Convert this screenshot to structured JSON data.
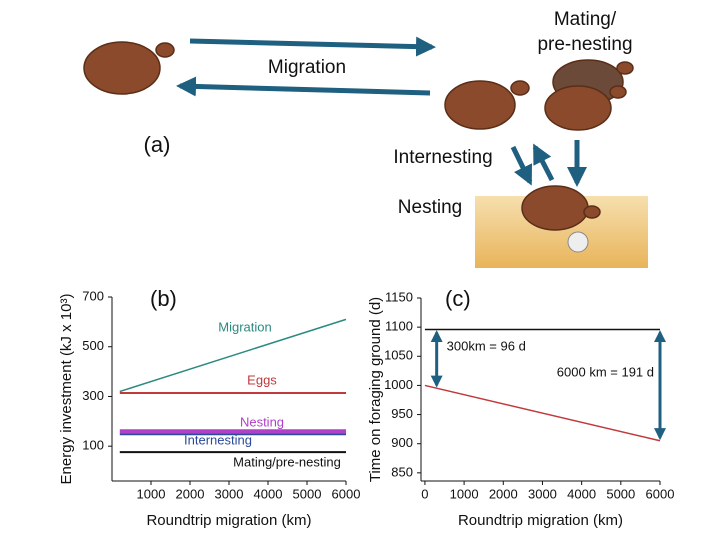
{
  "diagram": {
    "panel_label": "(a)",
    "migration": "Migration",
    "mating": [
      "Mating/",
      "pre-nesting"
    ],
    "internesting": "Internesting",
    "nesting": "Nesting"
  },
  "chart_data": [
    {
      "type": "line",
      "title": "(b)",
      "x_label": "Roundtrip migration (km)",
      "y_label": "Energy investment (kJ x 10³)",
      "xlim": [
        0,
        6000
      ],
      "xticks": [
        1000,
        2000,
        3000,
        4000,
        5000,
        6000
      ],
      "ylim": [
        -40,
        700
      ],
      "yticks": [
        100,
        300,
        500,
        700
      ],
      "series": [
        {
          "name": "Migration",
          "color": "#2a8a80",
          "x": [
            200,
            6000
          ],
          "values": [
            320,
            610
          ]
        },
        {
          "name": "Eggs",
          "color": "#c0393b",
          "x": [
            200,
            6000
          ],
          "values": [
            314,
            314
          ]
        },
        {
          "name": "Nesting",
          "color": "#b040c8",
          "x": [
            200,
            6000
          ],
          "values": [
            160,
            160
          ]
        },
        {
          "name": "Internesting",
          "color": "#2a4a9a",
          "x": [
            200,
            6000
          ],
          "values": [
            148,
            148
          ]
        },
        {
          "name": "Mating/pre-nesting",
          "color": "#111111",
          "x": [
            200,
            6000
          ],
          "values": [
            76,
            76
          ]
        }
      ]
    },
    {
      "type": "line",
      "title": "(c)",
      "x_label": "Roundtrip migration (km)",
      "y_label": "Time on foraging ground (d)",
      "xlim": [
        -100,
        6000
      ],
      "xticks": [
        0,
        1000,
        2000,
        3000,
        4000,
        5000,
        6000
      ],
      "ylim": [
        836,
        1150
      ],
      "yticks": [
        850,
        900,
        950,
        1000,
        1050,
        1100,
        1150
      ],
      "series": [
        {
          "color": "#111111",
          "x": [
            0,
            6000
          ],
          "values": [
            1096,
            1096
          ]
        },
        {
          "color": "#c0393b",
          "x": [
            0,
            6000
          ],
          "values": [
            1000,
            905
          ]
        }
      ],
      "annotations": [
        "300km = 96 d",
        "6000 km = 191 d"
      ]
    }
  ]
}
